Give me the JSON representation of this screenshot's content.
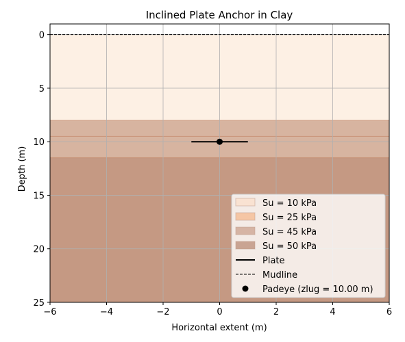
{
  "chart_data": {
    "type": "area",
    "title": "Inclined Plate Anchor in Clay",
    "xlabel": "Horizontal extent (m)",
    "ylabel": "Depth (m)",
    "xlim": [
      -6,
      6
    ],
    "ylim": [
      25,
      -1
    ],
    "y_inverted": true,
    "grid": true,
    "x_ticks": [
      -6,
      -4,
      -2,
      0,
      2,
      4,
      6
    ],
    "y_ticks": [
      0,
      5,
      10,
      15,
      20,
      25
    ],
    "layers": [
      {
        "name": "Su = 10 kPa",
        "top": 0,
        "bottom": 8,
        "color": "#fdf0e4",
        "alpha": 1.0
      },
      {
        "name": "Su = 25 kPa",
        "top": 9.5,
        "bottom": 11.5,
        "color": "#f4b48c",
        "alpha": 0.55
      },
      {
        "name": "Su = 45 kPa",
        "top": 8,
        "bottom": 25,
        "color": "#d7b4a0",
        "alpha": 1.0
      },
      {
        "name": "Su = 50 kPa",
        "top": 11.5,
        "bottom": 25,
        "color": "#b07860",
        "alpha": 0.45
      }
    ],
    "mudline": {
      "name": "Mudline",
      "depth": 0
    },
    "plate": {
      "name": "Plate",
      "x": [
        -1,
        1
      ],
      "depth": 10
    },
    "padeye": {
      "name": "Padeye (zlug = 10.00 m)",
      "x": 0,
      "depth": 10
    },
    "legend_position": "lower-right",
    "legend_order": [
      "Su = 10 kPa",
      "Su = 25 kPa",
      "Su = 45 kPa",
      "Su = 50 kPa",
      "Plate",
      "Mudline",
      "Padeye (zlug = 10.00 m)"
    ],
    "legend_swatches": [
      "#f9e2d2",
      "#f5c6a5",
      "#d6b4a4",
      "#c9a493"
    ]
  }
}
